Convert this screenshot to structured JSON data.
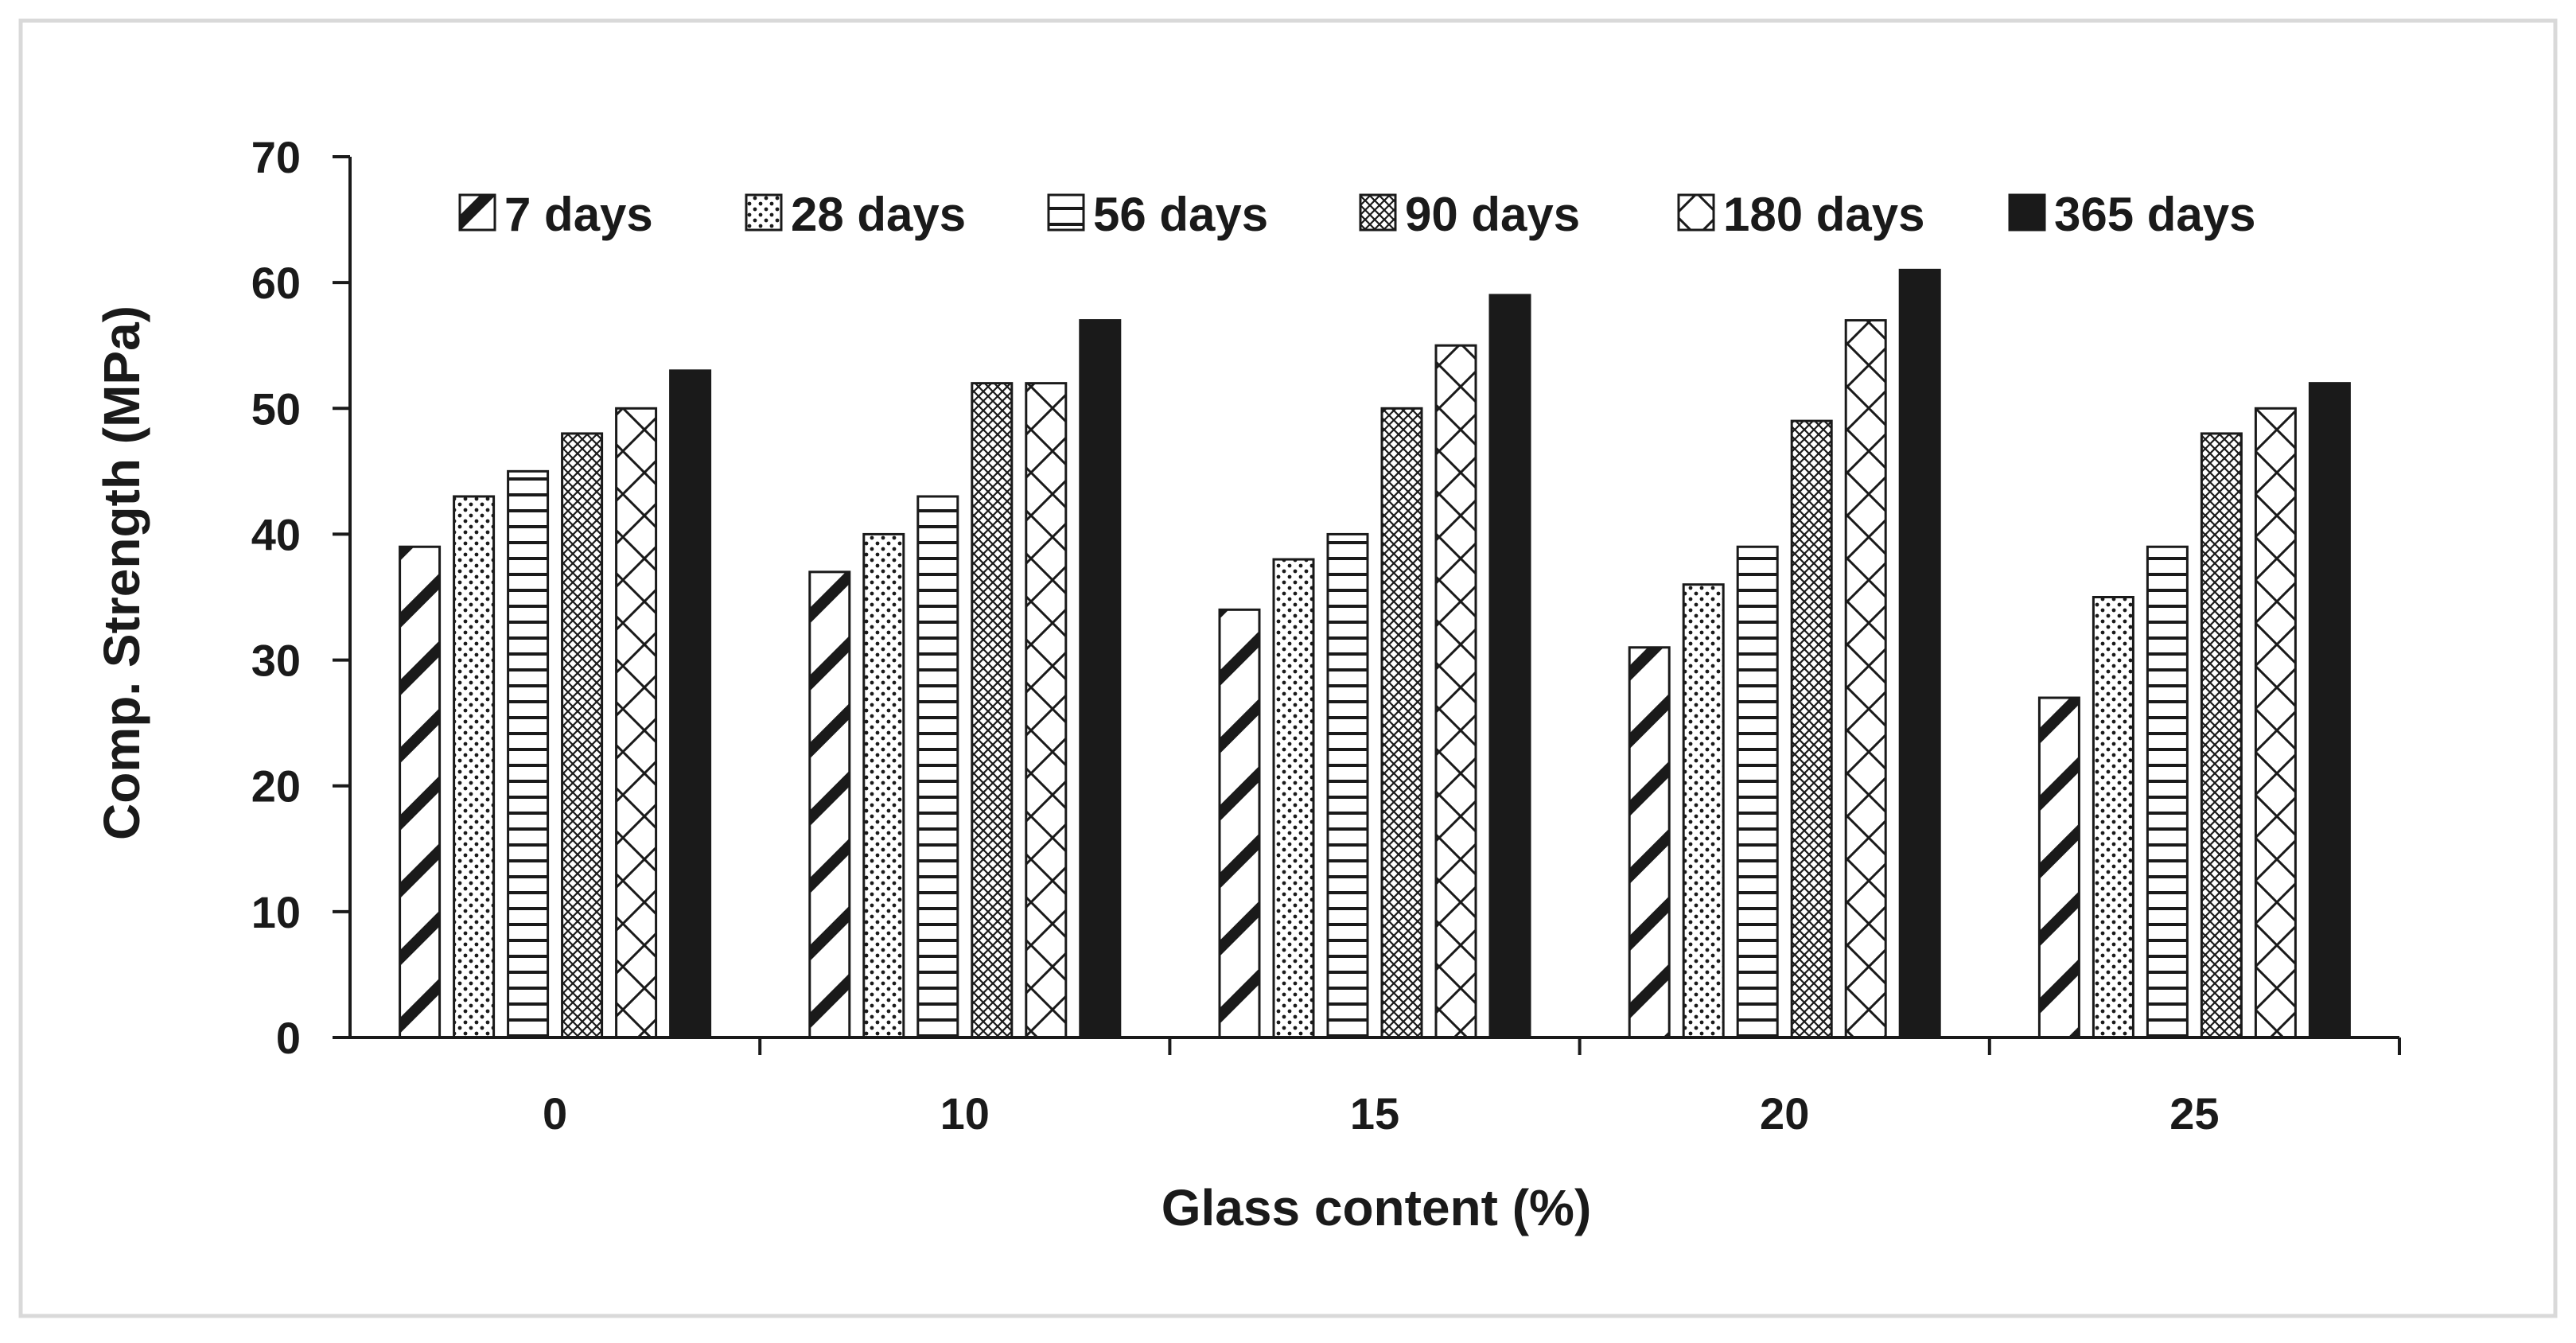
{
  "chart_data": {
    "type": "bar",
    "title": "",
    "xlabel": "Glass content (%)",
    "ylabel": "Comp. Strength (MPa)",
    "categories": [
      "0",
      "10",
      "15",
      "20",
      "25"
    ],
    "ylim": [
      0,
      70
    ],
    "yticks": [
      0,
      10,
      20,
      30,
      40,
      50,
      60,
      70
    ],
    "grid": false,
    "legend_position": "top",
    "series": [
      {
        "name": "7 days",
        "pattern": "diagonal-hatch",
        "values": [
          39,
          37,
          34,
          31,
          27
        ]
      },
      {
        "name": "28 days",
        "pattern": "dotted",
        "values": [
          43,
          40,
          38,
          36,
          35
        ]
      },
      {
        "name": "56 days",
        "pattern": "horizontal-lines",
        "values": [
          45,
          43,
          40,
          39,
          39
        ]
      },
      {
        "name": "90 days",
        "pattern": "dense-crosshatch",
        "values": [
          48,
          52,
          50,
          49,
          48
        ]
      },
      {
        "name": "180 days",
        "pattern": "open-crosshatch",
        "values": [
          50,
          52,
          55,
          57,
          50
        ]
      },
      {
        "name": "365 days",
        "pattern": "solid",
        "values": [
          53,
          57,
          59,
          61,
          52
        ]
      }
    ],
    "colors": {
      "ink": "#1a1a1a",
      "fill": "#ffffff",
      "frame": "#d9d9d9"
    }
  }
}
